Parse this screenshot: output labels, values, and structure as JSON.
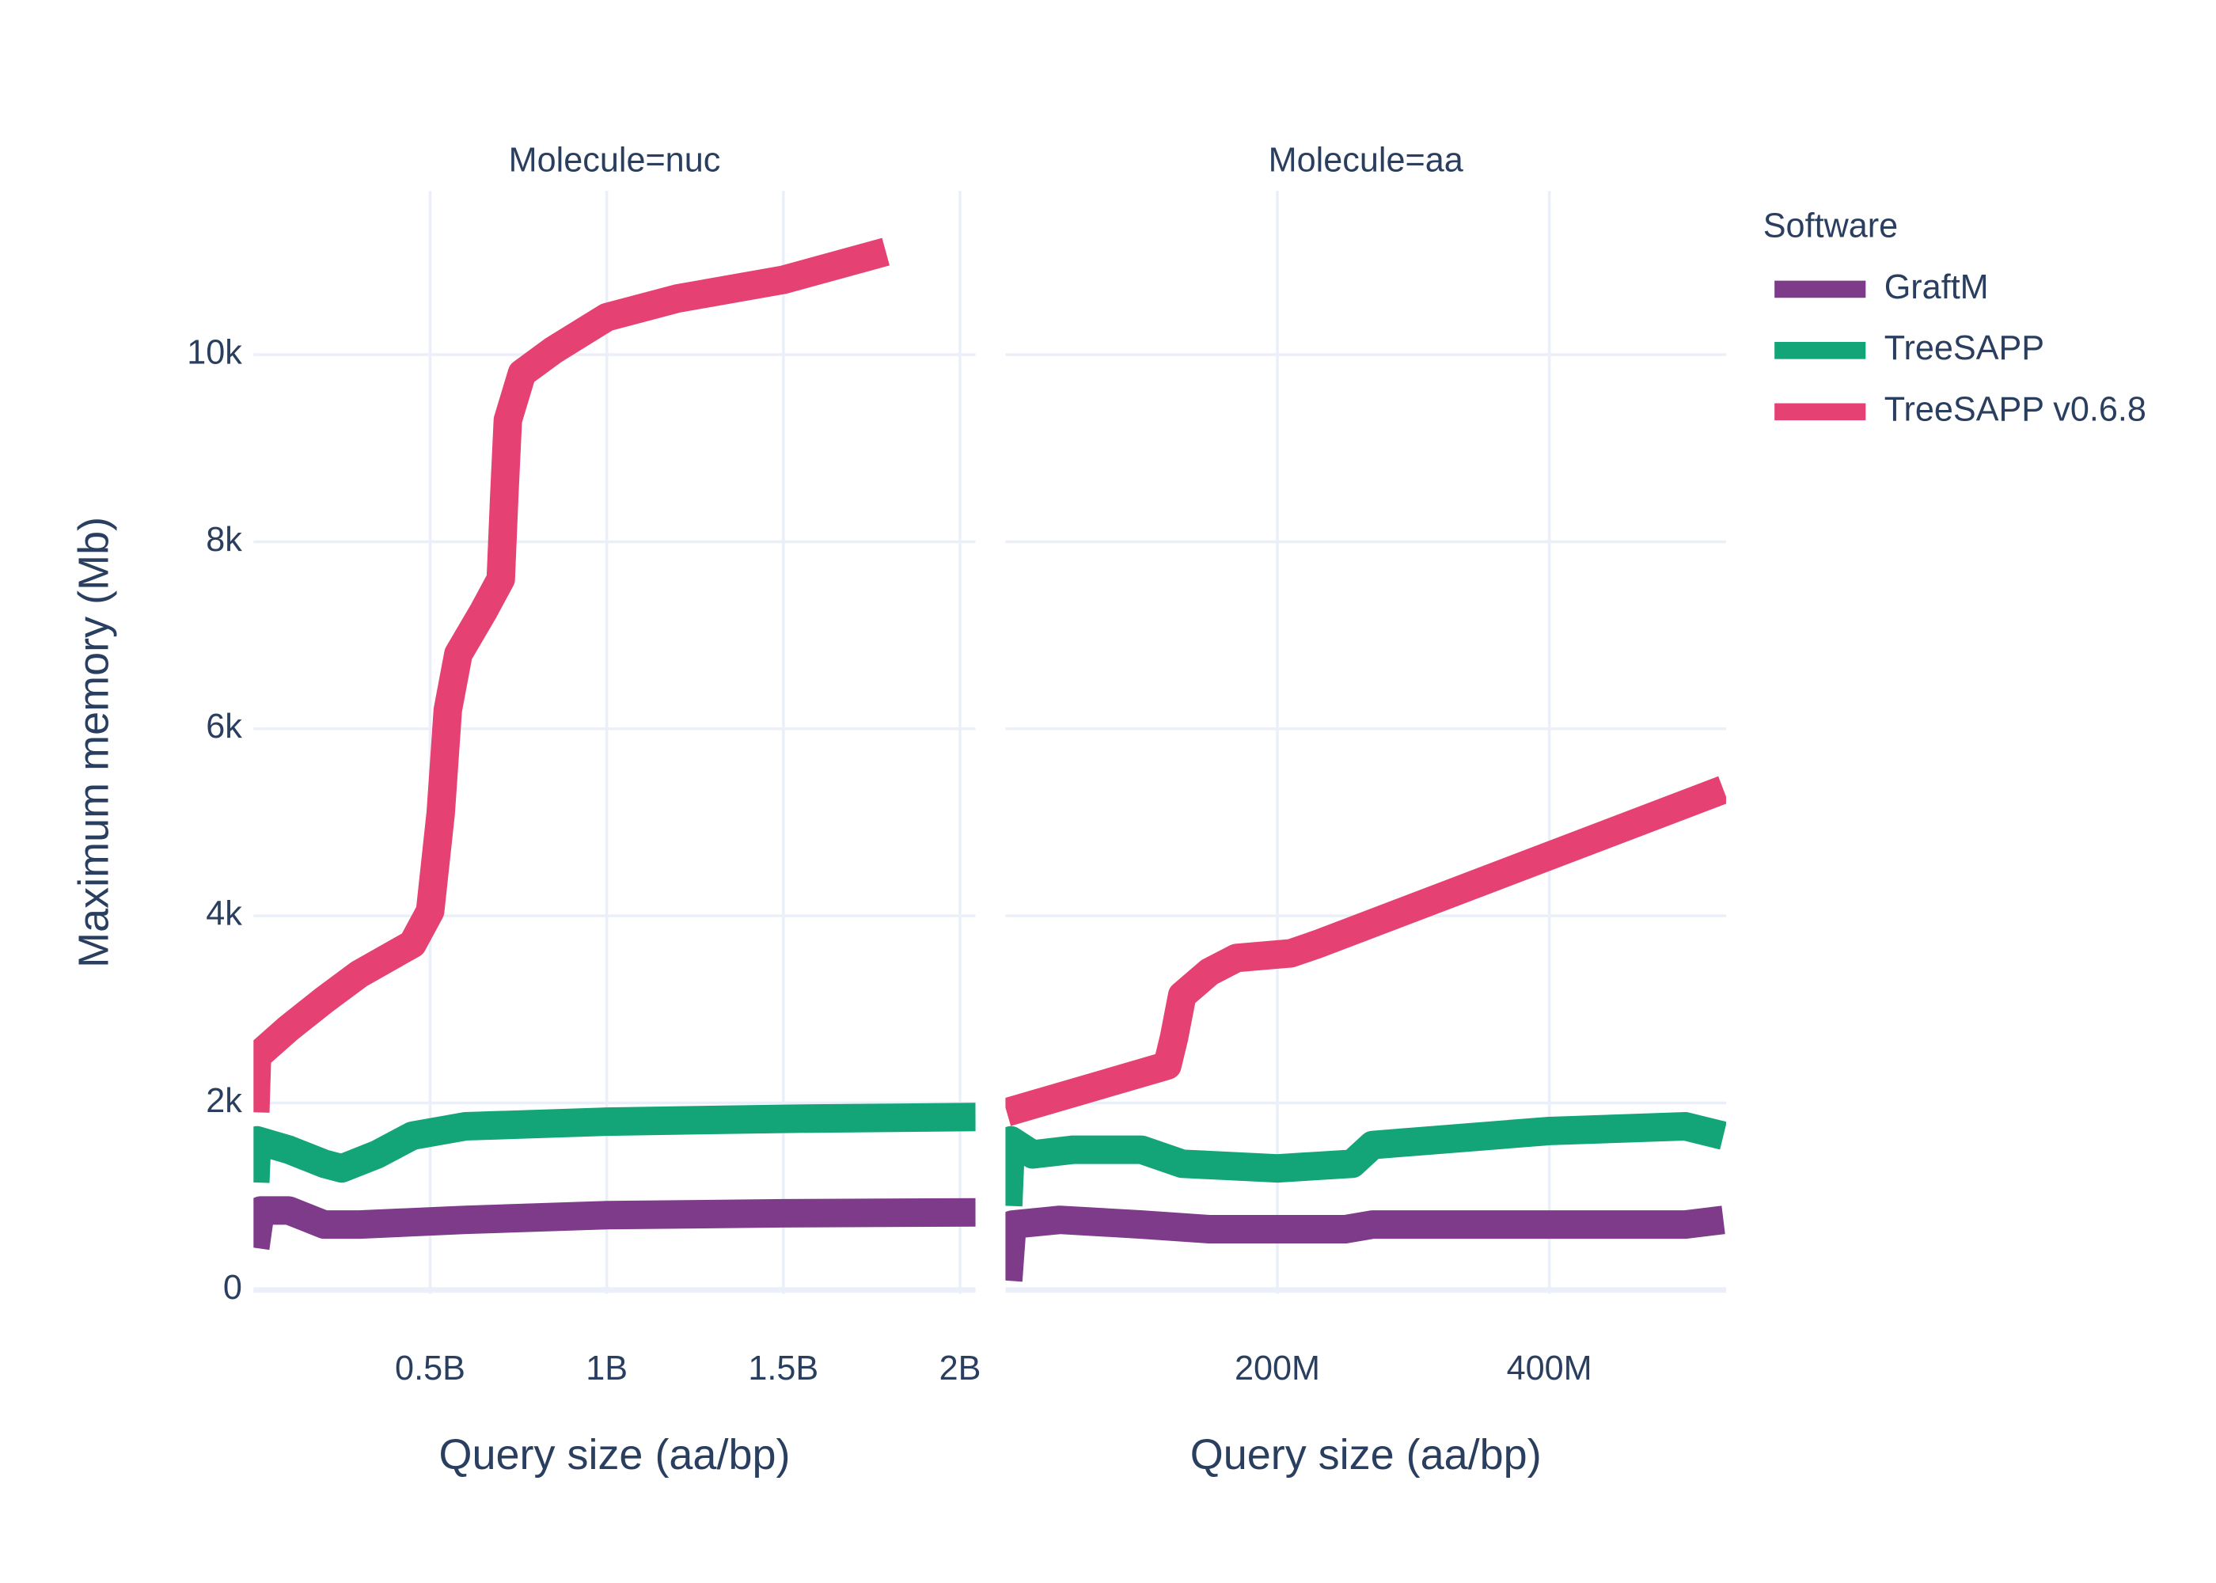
{
  "chart_data": [
    {
      "type": "line",
      "title": "Molecule=nuc",
      "x_label": "Query size (aa/bp)",
      "y_label": "Maximum memory (Mb)",
      "legend_title": "Software",
      "legend": "right",
      "grid": true,
      "xlim": [
        0,
        2044000000
      ],
      "xticks": [
        {
          "value": 500000000,
          "label": "0.5B"
        },
        {
          "value": 1000000000,
          "label": "1B"
        },
        {
          "value": 1500000000,
          "label": "1.5B"
        },
        {
          "value": 2000000000,
          "label": "2B"
        }
      ],
      "ylim": [
        -40,
        11750
      ],
      "yticks": [
        0,
        {
          "value": 2000,
          "label": "2k"
        },
        {
          "value": 4000,
          "label": "4k"
        },
        {
          "value": 6000,
          "label": "6k"
        },
        {
          "value": 8000,
          "label": "8k"
        },
        {
          "value": 10000,
          "label": "10k"
        }
      ],
      "series": [
        {
          "name": "GraftM",
          "color": "#7e3b8a",
          "x": [
            5000000,
            20000000,
            100000000,
            200000000,
            300000000,
            600000000,
            1000000000,
            1500000000,
            2044000000
          ],
          "values": [
            450,
            850,
            850,
            700,
            700,
            750,
            800,
            820,
            830
          ]
        },
        {
          "name": "TreeSAPP",
          "color": "#13a577",
          "x": [
            5000000,
            10000000,
            100000000,
            200000000,
            250000000,
            350000000,
            450000000,
            600000000,
            1000000000,
            1500000000,
            2044000000
          ],
          "values": [
            1150,
            1600,
            1500,
            1350,
            1300,
            1450,
            1650,
            1750,
            1800,
            1830,
            1850
          ]
        },
        {
          "name": "TreeSAPP v0.6.8",
          "color": "#e64173",
          "x": [
            5000000,
            10000000,
            100000000,
            200000000,
            300000000,
            450000000,
            500000000,
            530000000,
            550000000,
            580000000,
            650000000,
            700000000,
            710000000,
            720000000,
            760000000,
            850000000,
            1000000000,
            1200000000,
            1500000000,
            1790000000
          ],
          "values": [
            1900,
            2500,
            2800,
            3100,
            3380,
            3700,
            4050,
            5100,
            6200,
            6800,
            7250,
            7600,
            8500,
            9300,
            9800,
            10050,
            10400,
            10600,
            10800,
            11100
          ]
        }
      ]
    },
    {
      "type": "line",
      "title": "Molecule=aa",
      "x_label": "Query size (aa/bp)",
      "xlim": [
        0,
        530000000
      ],
      "xticks": [
        {
          "value": 200000000,
          "label": "200M"
        },
        {
          "value": 400000000,
          "label": "400M"
        }
      ],
      "series": [
        {
          "name": "GraftM",
          "color": "#7e3b8a",
          "x": [
            2000000,
            5000000,
            40000000,
            100000000,
            150000000,
            250000000,
            270000000,
            500000000,
            528000000
          ],
          "values": [
            100,
            700,
            750,
            700,
            650,
            650,
            700,
            700,
            750
          ]
        },
        {
          "name": "TreeSAPP",
          "color": "#13a577",
          "x": [
            2000000,
            4000000,
            20000000,
            50000000,
            100000000,
            130000000,
            200000000,
            255000000,
            270000000,
            400000000,
            500000000,
            528000000
          ],
          "values": [
            900,
            1600,
            1450,
            1500,
            1500,
            1350,
            1300,
            1350,
            1550,
            1700,
            1750,
            1650
          ]
        },
        {
          "name": "TreeSAPP v0.6.8",
          "color": "#e64173",
          "x": [
            1000000,
            119000000,
            124000000,
            130000000,
            150000000,
            170000000,
            210000000,
            230000000,
            528000000
          ],
          "values": [
            1900,
            2400,
            2700,
            3150,
            3400,
            3550,
            3600,
            3700,
            5350
          ]
        }
      ]
    }
  ]
}
